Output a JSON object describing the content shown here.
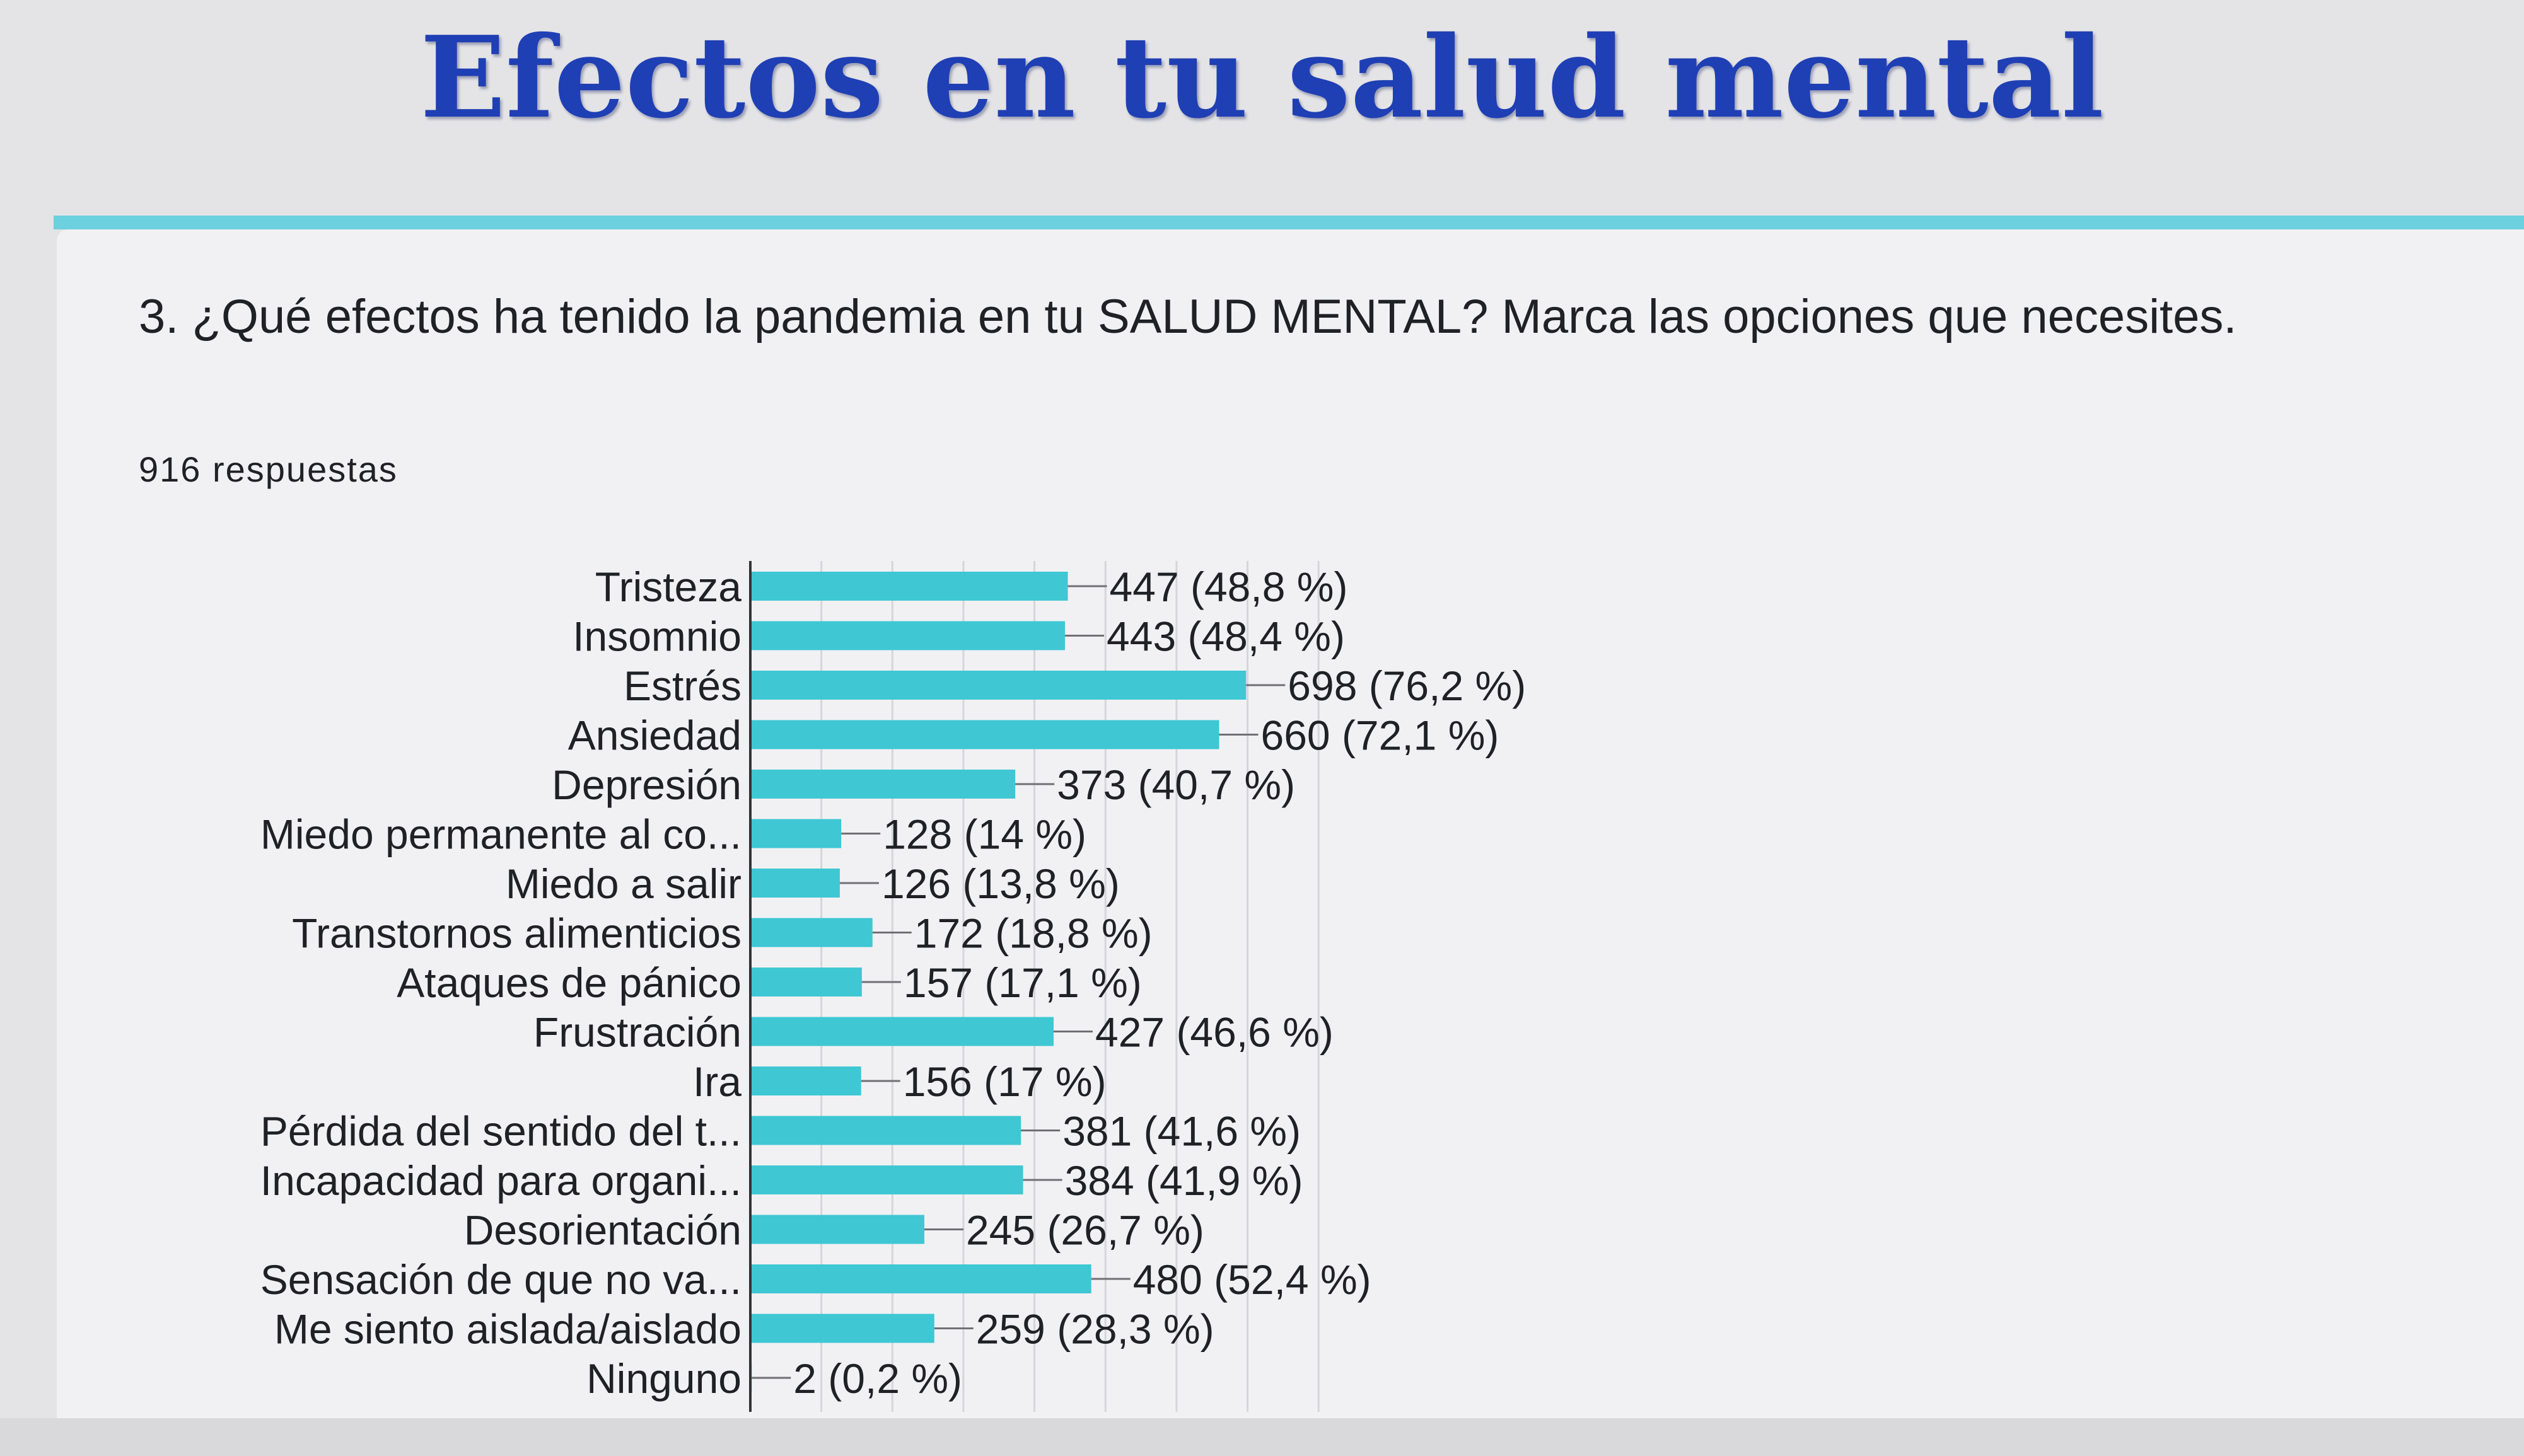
{
  "slide": {
    "title": "Efectos en tu salud mental"
  },
  "form": {
    "question": "3. ¿Qué efectos ha tenido la pandemia en tu SALUD MENTAL? Marca las opciones que necesites.",
    "responses": "916 respuestas"
  },
  "colors": {
    "bar": "#3fc7d4",
    "title": "#1f3fb4",
    "card_accent": "#6cd0de"
  },
  "chart_data": {
    "type": "bar",
    "orientation": "horizontal",
    "title": "",
    "xlabel": "",
    "ylabel": "",
    "xlim": [
      0,
      800
    ],
    "grid": true,
    "categories": [
      "Tristeza",
      "Insomnio",
      "Estrés",
      "Ansiedad",
      "Depresión",
      "Miedo permanente al co...",
      "Miedo a salir",
      "Transtornos alimenticios",
      "Ataques de pánico",
      "Frustración",
      "Ira",
      "Pérdida del sentido del t...",
      "Incapacidad para organi...",
      "Desorientación",
      "Sensación de que no va...",
      "Me siento aislada/aislado",
      "Ninguno"
    ],
    "values": [
      447,
      443,
      698,
      660,
      373,
      128,
      126,
      172,
      157,
      427,
      156,
      381,
      384,
      245,
      480,
      259,
      2
    ],
    "value_labels": [
      "447 (48,8 %)",
      "443 (48,4 %)",
      "698 (76,2 %)",
      "660 (72,1 %)",
      "373 (40,7 %)",
      "128 (14 %)",
      "126 (13,8 %)",
      "172 (18,8 %)",
      "157 (17,1 %)",
      "427 (46,6 %)",
      "156 (17 %)",
      "381 (41,6 %)",
      "384 (41,9 %)",
      "245 (26,7 %)",
      "480 (52,4 %)",
      "259 (28,3 %)",
      "2 (0,2 %)"
    ]
  }
}
